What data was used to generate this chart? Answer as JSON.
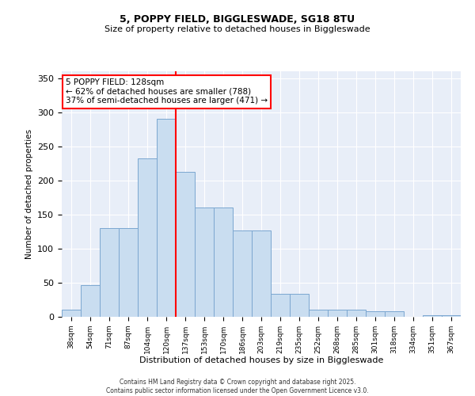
{
  "title1": "5, POPPY FIELD, BIGGLESWADE, SG18 8TU",
  "title2": "Size of property relative to detached houses in Biggleswade",
  "xlabel": "Distribution of detached houses by size in Biggleswade",
  "ylabel": "Number of detached properties",
  "categories": [
    "38sqm",
    "54sqm",
    "71sqm",
    "87sqm",
    "104sqm",
    "120sqm",
    "137sqm",
    "153sqm",
    "170sqm",
    "186sqm",
    "203sqm",
    "219sqm",
    "235sqm",
    "252sqm",
    "268sqm",
    "285sqm",
    "301sqm",
    "318sqm",
    "334sqm",
    "351sqm",
    "367sqm"
  ],
  "bar_heights": [
    10,
    47,
    130,
    130,
    232,
    290,
    213,
    160,
    160,
    127,
    127,
    34,
    34,
    10,
    10,
    10,
    8,
    8,
    0,
    2,
    2
  ],
  "bar_color": "#c9ddf0",
  "bar_edge_color": "#7ba7d0",
  "vline_position": 5.5,
  "vline_color": "red",
  "annotation_text": "5 POPPY FIELD: 128sqm\n← 62% of detached houses are smaller (788)\n37% of semi-detached houses are larger (471) →",
  "ylim": [
    0,
    360
  ],
  "yticks": [
    0,
    50,
    100,
    150,
    200,
    250,
    300,
    350
  ],
  "footer": "Contains HM Land Registry data © Crown copyright and database right 2025.\nContains public sector information licensed under the Open Government Licence v3.0.",
  "bg_color": "#e8eef8",
  "grid_color": "#ffffff"
}
